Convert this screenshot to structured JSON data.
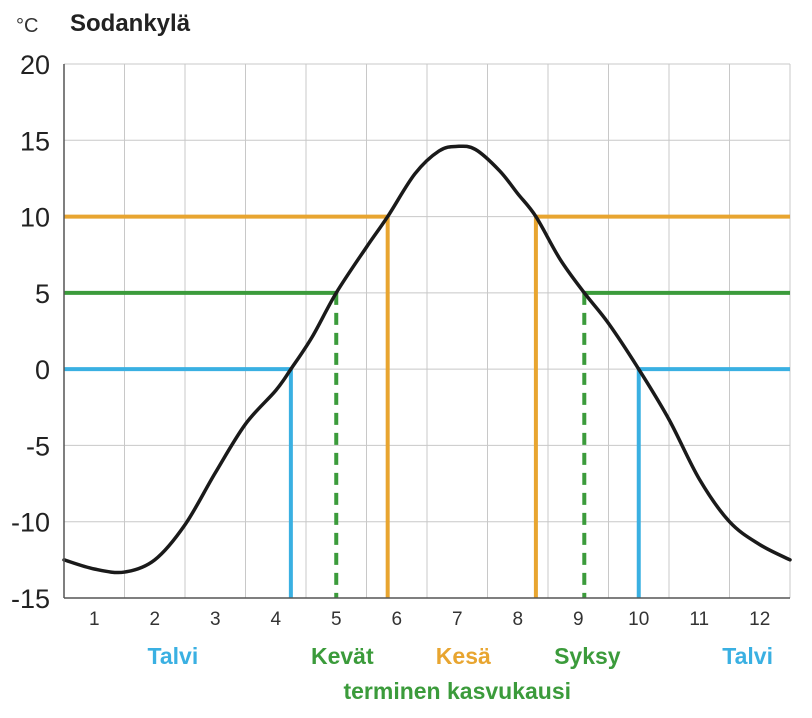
{
  "chart_data": {
    "type": "line",
    "title": "Sodankylä",
    "ylabel": "°C",
    "xlabel": "",
    "xlim": [
      0.5,
      12.5
    ],
    "ylim": [
      -15,
      20
    ],
    "grid": true,
    "x_ticks": [
      "1",
      "2",
      "3",
      "4",
      "5",
      "6",
      "7",
      "8",
      "9",
      "10",
      "11",
      "12"
    ],
    "y_ticks": [
      "20",
      "15",
      "10",
      "5",
      "0",
      "-5",
      "-10",
      "-15"
    ],
    "series": [
      {
        "color": "#1a1a1a",
        "points": [
          [
            0.5,
            -12.5
          ],
          [
            1.0,
            -13.1
          ],
          [
            1.5,
            -13.3
          ],
          [
            2.0,
            -12.5
          ],
          [
            2.5,
            -10.2
          ],
          [
            3.0,
            -6.8
          ],
          [
            3.5,
            -3.6
          ],
          [
            4.0,
            -1.4
          ],
          [
            4.25,
            0.0
          ],
          [
            4.6,
            2.1
          ],
          [
            5.0,
            5.0
          ],
          [
            5.5,
            8.0
          ],
          [
            5.85,
            10.0
          ],
          [
            6.3,
            12.8
          ],
          [
            6.7,
            14.3
          ],
          [
            7.0,
            14.6
          ],
          [
            7.3,
            14.4
          ],
          [
            7.7,
            13.0
          ],
          [
            8.0,
            11.5
          ],
          [
            8.3,
            10.0
          ],
          [
            8.7,
            7.2
          ],
          [
            9.1,
            5.0
          ],
          [
            9.5,
            3.0
          ],
          [
            10.0,
            0.0
          ],
          [
            10.5,
            -3.3
          ],
          [
            11.0,
            -7.2
          ],
          [
            11.5,
            -10.0
          ],
          [
            12.0,
            -11.5
          ],
          [
            12.5,
            -12.5
          ]
        ]
      }
    ],
    "thresholds": [
      {
        "y": 10,
        "color": "#e8a530",
        "segments": [
          [
            0.5,
            5.85
          ],
          [
            8.3,
            12.5
          ]
        ]
      },
      {
        "y": 5,
        "color": "#3b9b3b",
        "segments": [
          [
            0.5,
            5.0
          ],
          [
            9.1,
            12.5
          ]
        ]
      },
      {
        "y": 0,
        "color": "#3ab0e2",
        "segments": [
          [
            0.5,
            4.25
          ],
          [
            10.0,
            12.5
          ]
        ]
      }
    ],
    "season_markers": [
      {
        "x": 4.25,
        "y": 0,
        "color": "#3ab0e2",
        "dashed": false
      },
      {
        "x": 5.0,
        "y": 5,
        "color": "#3b9b3b",
        "dashed": true
      },
      {
        "x": 5.85,
        "y": 10,
        "color": "#e8a530",
        "dashed": false
      },
      {
        "x": 8.3,
        "y": 10,
        "color": "#e8a530",
        "dashed": false
      },
      {
        "x": 9.1,
        "y": 5,
        "color": "#3b9b3b",
        "dashed": true
      },
      {
        "x": 10.0,
        "y": 0,
        "color": "#3ab0e2",
        "dashed": false
      }
    ],
    "season_labels": [
      {
        "text": "Talvi",
        "x": 2.3,
        "color": "#3ab0e2",
        "row": 1
      },
      {
        "text": "Kevät",
        "x": 5.1,
        "color": "#3b9b3b",
        "row": 1
      },
      {
        "text": "Kesä",
        "x": 7.1,
        "color": "#e8a530",
        "row": 1
      },
      {
        "text": "Syksy",
        "x": 9.15,
        "color": "#3b9b3b",
        "row": 1
      },
      {
        "text": "Talvi",
        "x": 11.8,
        "color": "#3ab0e2",
        "row": 1
      },
      {
        "text": "terminen kasvukausi",
        "x": 7.0,
        "color": "#3b9b3b",
        "row": 2
      }
    ]
  }
}
